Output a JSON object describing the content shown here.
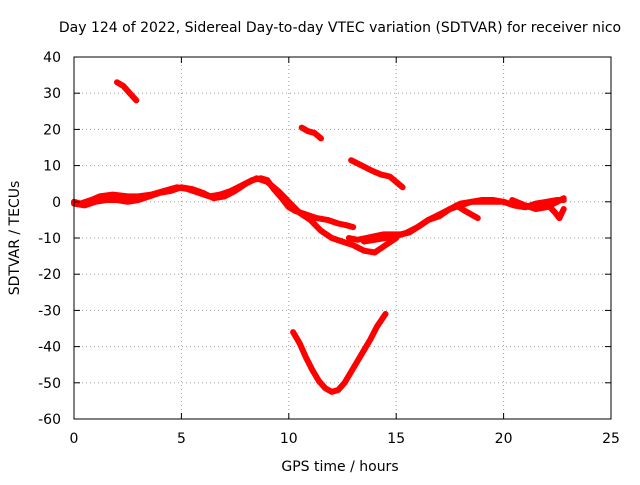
{
  "chart_data": {
    "type": "line",
    "title": "Day 124 of 2022, Sidereal Day-to-day VTEC variation (SDTVAR) for receiver nico",
    "xlabel": "GPS time / hours",
    "ylabel": "SDTVAR / TECUs",
    "xlim": [
      0,
      25
    ],
    "ylim": [
      -60,
      40
    ],
    "xticks": [
      0,
      5,
      10,
      15,
      20,
      25
    ],
    "xtick_labels": [
      "0",
      "5",
      "10",
      "15",
      "20",
      "25"
    ],
    "yticks": [
      -60,
      -50,
      -40,
      -30,
      -20,
      -10,
      0,
      10,
      20,
      30,
      40
    ],
    "ytick_labels": [
      "-60",
      "-50",
      "-40",
      "-30",
      "-20",
      "-10",
      "0",
      "10",
      "20",
      "30",
      "40"
    ],
    "grid": true,
    "series_color": "#ff0000",
    "series": [
      {
        "name": "arc-main-1",
        "x": [
          0.0,
          0.3,
          0.8,
          1.2,
          1.8,
          2.5,
          3.0,
          3.6,
          4.2,
          4.8,
          5.3,
          5.8,
          6.3,
          6.8,
          7.3,
          7.8,
          8.3,
          8.7,
          9.0,
          9.3,
          9.6,
          10.0,
          10.3,
          10.8,
          11.3,
          11.8,
          12.3,
          12.7,
          13.0
        ],
        "y": [
          0,
          -0.5,
          0.5,
          1.5,
          2,
          1.5,
          1.5,
          2,
          3,
          4,
          3.5,
          2.5,
          1.5,
          2,
          3,
          4.5,
          6,
          6.5,
          6,
          3.5,
          1.5,
          -1.5,
          -2.5,
          -3.5,
          -4.5,
          -5,
          -6,
          -6.5,
          -7
        ]
      },
      {
        "name": "arc-main-2",
        "x": [
          0.0,
          0.5,
          1.0,
          1.5,
          2.0,
          2.5,
          3.0,
          3.5,
          4.0,
          4.5,
          5.0,
          5.5,
          6.0,
          6.5,
          7.0,
          7.5,
          8.0,
          8.5,
          9.0,
          9.5,
          10.0,
          10.5,
          11.0,
          11.5,
          12.0,
          12.5,
          13.0,
          13.5,
          14.0,
          14.5,
          15.0
        ],
        "y": [
          -0.5,
          -1,
          0,
          0.5,
          0.5,
          0,
          0.5,
          1.5,
          2.5,
          3,
          4,
          3.5,
          2.5,
          1,
          1.5,
          3,
          5,
          6.5,
          5.5,
          3,
          0,
          -3,
          -5,
          -8,
          -10,
          -11,
          -12,
          -13.5,
          -14,
          -12,
          -10
        ]
      },
      {
        "name": "arc-main-3",
        "x": [
          12.8,
          13.2,
          13.6,
          14.0,
          14.4,
          14.8,
          15.2,
          15.6,
          16.0,
          16.5,
          17.0,
          17.5,
          18.0,
          18.5,
          19.0,
          19.5,
          20.0,
          20.5,
          21.0,
          21.5,
          22.0,
          22.5,
          22.8
        ],
        "y": [
          -10,
          -10.5,
          -10,
          -9.5,
          -9,
          -9,
          -9,
          -8.5,
          -7,
          -5,
          -4,
          -2,
          -0.5,
          0,
          0,
          0,
          0,
          -1,
          -1.5,
          -0.5,
          0,
          0.5,
          0.5
        ]
      },
      {
        "name": "arc-main-4",
        "x": [
          13.5,
          14.0,
          14.5,
          15.0,
          15.5,
          16.0,
          16.5,
          17.0,
          17.5,
          18.0,
          18.5,
          19.0,
          19.5,
          20.0,
          20.5,
          21.0,
          21.5,
          22.0,
          22.4,
          22.6,
          22.8
        ],
        "y": [
          -11,
          -10.5,
          -10,
          -9.5,
          -8.5,
          -7,
          -5,
          -3.5,
          -2,
          -1,
          0,
          0.5,
          0.5,
          0,
          -1,
          -1.5,
          -1,
          -0.5,
          -3,
          -4.5,
          -2
        ]
      },
      {
        "name": "arc-branch-1",
        "x": [
          17.8,
          18.2,
          18.5,
          18.8
        ],
        "y": [
          -1,
          -2.5,
          -3.5,
          -4.5
        ]
      },
      {
        "name": "arc-branch-2",
        "x": [
          20.4,
          21.0,
          21.5,
          22.0,
          22.5,
          22.8
        ],
        "y": [
          0.5,
          -1,
          -2,
          -1.5,
          0,
          1
        ]
      },
      {
        "name": "arc-upper-1",
        "x": [
          2.0,
          2.3,
          2.6,
          2.9
        ],
        "y": [
          33,
          32,
          30,
          28
        ]
      },
      {
        "name": "arc-upper-2",
        "x": [
          10.6,
          10.9,
          11.2,
          11.5
        ],
        "y": [
          20.5,
          19.5,
          19,
          17.5
        ]
      },
      {
        "name": "arc-upper-3",
        "x": [
          12.9,
          13.4,
          13.9,
          14.3,
          14.7,
          15.1,
          15.3
        ],
        "y": [
          11.5,
          10,
          8.5,
          7.5,
          7,
          5,
          4
        ]
      },
      {
        "name": "arc-dip",
        "x": [
          10.2,
          10.5,
          10.8,
          11.1,
          11.4,
          11.7,
          12.0,
          12.3,
          12.6,
          12.9,
          13.2,
          13.5,
          13.8,
          14.1,
          14.5
        ],
        "y": [
          -36,
          -39,
          -43,
          -46.5,
          -49.5,
          -51.5,
          -52.5,
          -52,
          -50,
          -47,
          -44,
          -41,
          -38,
          -34.5,
          -31
        ]
      }
    ]
  }
}
